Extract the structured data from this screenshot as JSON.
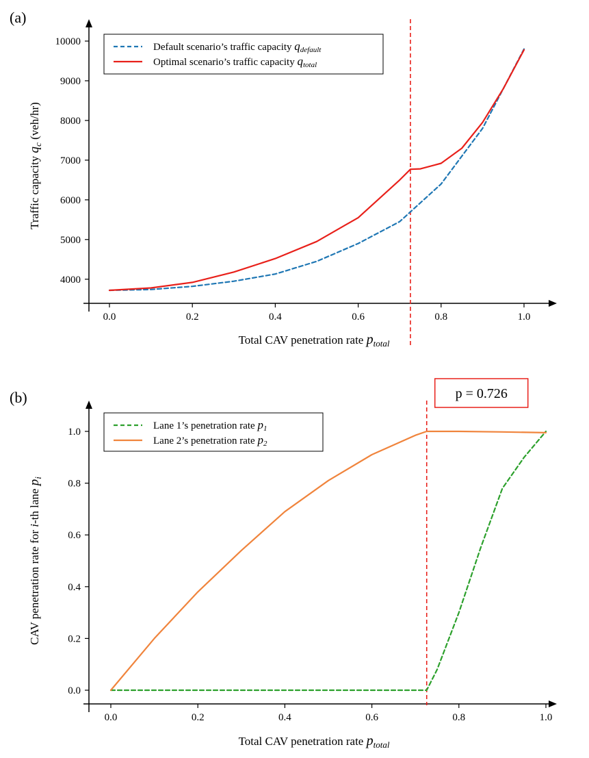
{
  "chart_data": [
    {
      "type": "line",
      "panel_label": "(a)",
      "xlabel": "Total CAV penetration rate p_total",
      "xlabel_main": "Total CAV penetration rate ",
      "xlabel_var": "p",
      "xlabel_sub": "total",
      "ylabel": "Traffic capacity q_c (veh/hr)",
      "ylabel_pre": "Traffic capacity ",
      "ylabel_var": "q",
      "ylabel_sub": "c",
      "ylabel_post": " (veh/hr)",
      "xlim": [
        0,
        1
      ],
      "ylim": [
        3720,
        10000
      ],
      "x_ticks": [
        0.0,
        0.2,
        0.4,
        0.6,
        0.8,
        1.0
      ],
      "x_tick_labels": [
        "0.0",
        "0.2",
        "0.4",
        "0.6",
        "0.8",
        "1.0"
      ],
      "y_ticks": [
        4000,
        5000,
        6000,
        7000,
        8000,
        9000,
        10000
      ],
      "y_tick_labels": [
        "4000",
        "5000",
        "6000",
        "7000",
        "8000",
        "9000",
        "10000"
      ],
      "grid": false,
      "legend_position": "top-left",
      "vline_x": 0.726,
      "vline_color": "#e8201a",
      "series": [
        {
          "name": "Default scenario’s traffic capacity q_default",
          "legend_main": "Default scenario’s traffic capacity ",
          "legend_var": "q",
          "legend_sub": "default",
          "color": "#1f77b4",
          "dash": true,
          "x": [
            0,
            0.1,
            0.2,
            0.3,
            0.4,
            0.5,
            0.6,
            0.7,
            0.8,
            0.9,
            1.0
          ],
          "y": [
            3720,
            3740,
            3820,
            3950,
            4130,
            4450,
            4900,
            5450,
            6400,
            7800,
            9800
          ]
        },
        {
          "name": "Optimal scenario’s traffic capacity q_total",
          "legend_main": "Optimal scenario’s traffic capacity ",
          "legend_var": "q",
          "legend_sub": "total",
          "color": "#e8201a",
          "dash": false,
          "x": [
            0,
            0.1,
            0.2,
            0.3,
            0.4,
            0.5,
            0.6,
            0.7,
            0.726,
            0.75,
            0.8,
            0.85,
            0.9,
            0.95,
            1.0
          ],
          "y": [
            3720,
            3780,
            3920,
            4180,
            4520,
            4950,
            5550,
            6500,
            6770,
            6780,
            6920,
            7300,
            7950,
            8800,
            9780
          ]
        }
      ]
    },
    {
      "type": "line",
      "panel_label": "(b)",
      "xlabel": "Total CAV penetration rate p_total",
      "xlabel_main": "Total CAV penetration rate ",
      "xlabel_var": "p",
      "xlabel_sub": "total",
      "ylabel": "CAV penetration rate for i-th lane p_i",
      "ylabel_pre": "CAV penetration rate for ",
      "ylabel_mid_var": "i",
      "ylabel_mid": "-th lane ",
      "ylabel_var": "p",
      "ylabel_sub": "i",
      "ylabel_post": "",
      "xlim": [
        0,
        1
      ],
      "ylim": [
        0,
        1
      ],
      "x_ticks": [
        0.0,
        0.2,
        0.4,
        0.6,
        0.8,
        1.0
      ],
      "x_tick_labels": [
        "0.0",
        "0.2",
        "0.4",
        "0.6",
        "0.8",
        "1.0"
      ],
      "y_ticks": [
        0.0,
        0.2,
        0.4,
        0.6,
        0.8,
        1.0
      ],
      "y_tick_labels": [
        "0.0",
        "0.2",
        "0.4",
        "0.6",
        "0.8",
        "1.0"
      ],
      "grid": false,
      "legend_position": "top-left",
      "vline_x": 0.726,
      "vline_color": "#e8201a",
      "annotation": "p = 0.726",
      "series": [
        {
          "name": "Lane 1’s penetration rate p_1",
          "legend_main": "Lane 1’s penetration rate ",
          "legend_var": "p",
          "legend_sub": "1",
          "color": "#2ca02c",
          "dash": true,
          "x": [
            0,
            0.726,
            0.75,
            0.8,
            0.85,
            0.9,
            0.95,
            1.0
          ],
          "y": [
            0,
            0,
            0.08,
            0.3,
            0.55,
            0.78,
            0.9,
            1.0
          ]
        },
        {
          "name": "Lane 2’s penetration rate p_2",
          "legend_main": "Lane 2’s penetration rate ",
          "legend_var": "p",
          "legend_sub": "2",
          "color": "#f0843c",
          "dash": false,
          "x": [
            0,
            0.1,
            0.2,
            0.3,
            0.4,
            0.5,
            0.6,
            0.7,
            0.726,
            0.8,
            0.9,
            1.0
          ],
          "y": [
            0,
            0.2,
            0.38,
            0.54,
            0.69,
            0.81,
            0.91,
            0.985,
            1.0,
            1.0,
            0.998,
            0.995
          ]
        }
      ]
    }
  ]
}
